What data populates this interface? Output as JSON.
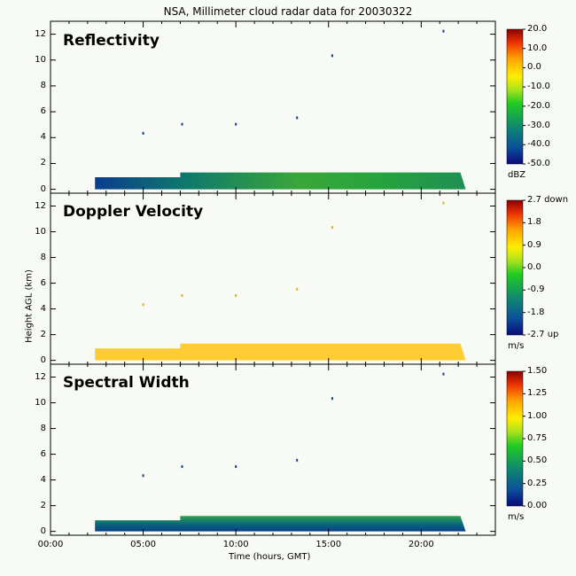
{
  "title": "NSA, Millimeter cloud radar data for 20030322",
  "xlabel": "Time (hours, GMT)",
  "ylabel": "Height AGL (km)",
  "xticks": [
    "00:00",
    "05:00",
    "10:00",
    "15:00",
    "20:00"
  ],
  "yticks": [
    "0",
    "2",
    "4",
    "6",
    "8",
    "10",
    "12"
  ],
  "panels": [
    {
      "label": "Reflectivity",
      "unit": "dBZ",
      "cb_ticks": [
        "20.0",
        "10.0",
        "0.0",
        "-10.0",
        "-20.0",
        "-30.0",
        "-40.0",
        "-50.0"
      ],
      "colormap": "radar-rainbow"
    },
    {
      "label": "Doppler Velocity",
      "unit": "m/s",
      "cb_ticks": [
        "2.7 down",
        "1.8",
        "0.9",
        "0.0",
        "-0.9",
        "-1.8",
        "-2.7 up"
      ],
      "colormap": "radar-rainbow"
    },
    {
      "label": "Spectral Width",
      "unit": "m/s",
      "cb_ticks": [
        "1.50",
        "1.25",
        "1.00",
        "0.75",
        "0.50",
        "0.25",
        "0.00"
      ],
      "colormap": "radar-rainbow"
    }
  ],
  "chart_data": {
    "type": "heatmap",
    "title": "NSA, Millimeter cloud radar data for 20030322",
    "xlabel": "Time (hours, GMT)",
    "ylabel": "Height AGL (km)",
    "xlim": [
      0,
      24
    ],
    "ylim": [
      -0.3,
      13
    ],
    "colors": {
      "background": "#f8fbf5",
      "velocity_fill": "#ffcc33"
    },
    "layers": [
      {
        "name": "Reflectivity",
        "colorbar_range": [
          -50,
          20
        ],
        "cloud_layer": {
          "start_hour": 2.4,
          "end_hour": 22.4,
          "base_km": 0.0,
          "top_km": 1.3,
          "typical_value": -30
        }
      },
      {
        "name": "Doppler Velocity",
        "colorbar_range": [
          -2.7,
          2.7
        ],
        "cloud_layer": {
          "start_hour": 2.4,
          "end_hour": 22.4,
          "base_km": 0.0,
          "top_km": 1.3,
          "typical_value": 0.3
        }
      },
      {
        "name": "Spectral Width",
        "colorbar_range": [
          0.0,
          1.5
        ],
        "cloud_layer": {
          "start_hour": 2.4,
          "end_hour": 22.4,
          "base_km": 0.0,
          "top_km": 1.2,
          "typical_value": 0.3
        }
      }
    ],
    "sparse_returns": [
      {
        "time": 7.1,
        "height": 5.0
      },
      {
        "time": 10.0,
        "height": 5.0
      },
      {
        "time": 5.0,
        "height": 4.3
      },
      {
        "time": 13.3,
        "height": 5.5
      },
      {
        "time": 15.2,
        "height": 10.3
      },
      {
        "time": 21.2,
        "height": 12.2
      }
    ]
  }
}
